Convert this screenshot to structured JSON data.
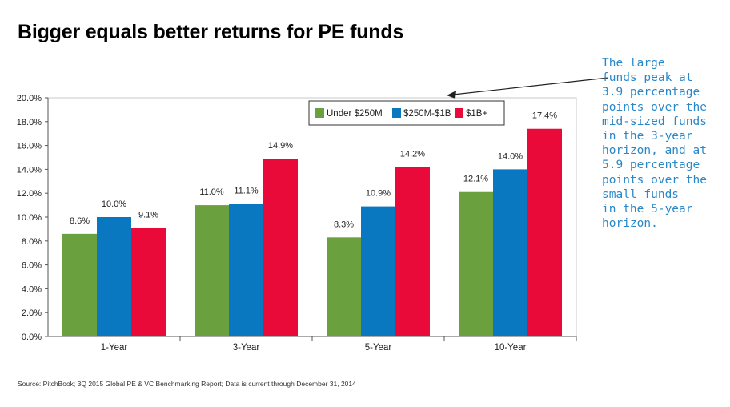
{
  "title": "Bigger equals better returns for PE funds",
  "annotation": "The large\nfunds peak at\n3.9 percentage\npoints over the\nmid-sized funds\nin the 3-year\nhorizon, and at\n5.9 percentage\npoints over the\nsmall funds\nin the 5-year\nhorizon.",
  "source": "Source: PitchBook; 3Q 2015 Global PE & VC Benchmarking Report; Data is current through December 31, 2014",
  "colors": {
    "under250m": "#6aa13e",
    "mid": "#0a78c0",
    "large": "#ea0a3a",
    "annotation": "#2a88c8"
  },
  "chart_data": {
    "type": "bar",
    "categories": [
      "1-Year",
      "3-Year",
      "5-Year",
      "10-Year"
    ],
    "series": [
      {
        "name": "Under $250M",
        "values": [
          8.6,
          11.0,
          8.3,
          12.1
        ],
        "labels": [
          "8.6%",
          "11.0%",
          "8.3%",
          "12.1%"
        ],
        "color": "#6aa13e"
      },
      {
        "name": "$250M-$1B",
        "values": [
          10.0,
          11.1,
          10.9,
          14.0
        ],
        "labels": [
          "10.0%",
          "11.1%",
          "10.9%",
          "14.0%"
        ],
        "color": "#0a78c0"
      },
      {
        "name": "$1B+",
        "values": [
          9.1,
          14.9,
          14.2,
          17.4
        ],
        "labels": [
          "9.1%",
          "14.9%",
          "14.2%",
          "17.4%"
        ],
        "color": "#ea0a3a"
      }
    ],
    "yticks": [
      "0.0%",
      "2.0%",
      "4.0%",
      "6.0%",
      "8.0%",
      "10.0%",
      "12.0%",
      "14.0%",
      "16.0%",
      "18.0%",
      "20.0%"
    ],
    "ylim": [
      0,
      20
    ],
    "grid": false,
    "legend_position": "top-right"
  }
}
